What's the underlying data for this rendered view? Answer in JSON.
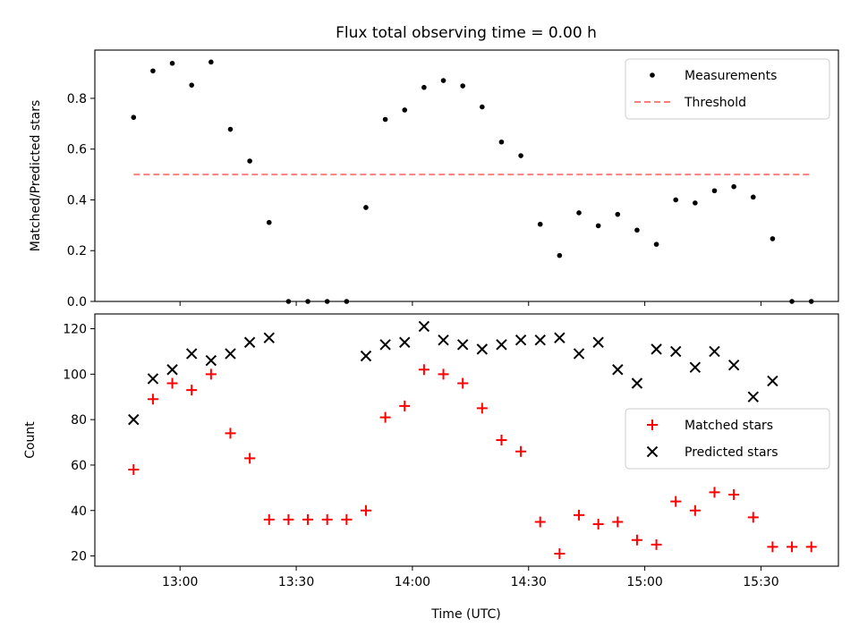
{
  "figure": {
    "title": "Flux total observing time = 0.00 h",
    "xlabel": "Time (UTC)"
  },
  "colors": {
    "measurements": "#000000",
    "threshold": "#ff7f7f",
    "matched": "#ff0000",
    "predicted": "#000000"
  },
  "chart_data": [
    {
      "type": "scatter",
      "title": "Flux total observing time = 0.00 h",
      "ylabel": "Matched/Predicted stars",
      "xlabel": "",
      "xlim": [
        "12:38",
        "15:50"
      ],
      "ylim": [
        0,
        0.99
      ],
      "yticks": [
        0.0,
        0.2,
        0.4,
        0.6,
        0.8
      ],
      "ytick_labels": [
        "0.0",
        "0.2",
        "0.4",
        "0.6",
        "0.8"
      ],
      "legend": [
        "Measurements",
        "Threshold"
      ],
      "legend_position": "top-right",
      "series": [
        {
          "name": "Measurements",
          "marker": "dot",
          "x": [
            "12:48",
            "12:53",
            "12:58",
            "13:03",
            "13:08",
            "13:13",
            "13:18",
            "13:23",
            "13:28",
            "13:33",
            "13:38",
            "13:43",
            "13:48",
            "13:53",
            "13:58",
            "14:03",
            "14:08",
            "14:13",
            "14:18",
            "14:23",
            "14:28",
            "14:33",
            "14:38",
            "14:43",
            "14:48",
            "14:53",
            "14:58",
            "15:03",
            "15:08",
            "15:13",
            "15:18",
            "15:23",
            "15:28",
            "15:33",
            "15:38",
            "15:43"
          ],
          "y": [
            0.725,
            0.908,
            0.938,
            0.852,
            0.943,
            0.678,
            0.553,
            0.311,
            0.0,
            0.0,
            0.0,
            0.0,
            0.37,
            0.717,
            0.754,
            0.843,
            0.87,
            0.849,
            0.766,
            0.628,
            0.574,
            0.304,
            0.181,
            0.349,
            0.298,
            0.343,
            0.281,
            0.225,
            0.4,
            0.388,
            0.436,
            0.452,
            0.411,
            0.247,
            0.0,
            0.0
          ]
        },
        {
          "name": "Threshold",
          "style": "dashed",
          "x": [
            "12:48",
            "15:43"
          ],
          "y": [
            0.5,
            0.5
          ]
        }
      ]
    },
    {
      "type": "scatter",
      "ylabel": "Count",
      "xlabel": "Time (UTC)",
      "xlim": [
        "12:38",
        "15:50"
      ],
      "ylim": [
        15.5,
        126.5
      ],
      "yticks": [
        20,
        40,
        60,
        80,
        100,
        120
      ],
      "ytick_labels": [
        "20",
        "40",
        "60",
        "80",
        "100",
        "120"
      ],
      "xticks": [
        "13:00",
        "13:30",
        "14:00",
        "14:30",
        "15:00",
        "15:30"
      ],
      "xtick_labels": [
        "13:00",
        "13:30",
        "14:00",
        "14:30",
        "15:00",
        "15:30"
      ],
      "legend": [
        "Matched stars",
        "Predicted stars"
      ],
      "legend_position": "center-right",
      "series": [
        {
          "name": "Matched stars",
          "marker": "plus",
          "x": [
            "12:48",
            "12:53",
            "12:58",
            "13:03",
            "13:08",
            "13:13",
            "13:18",
            "13:23",
            "13:28",
            "13:33",
            "13:38",
            "13:43",
            "13:48",
            "13:53",
            "13:58",
            "14:03",
            "14:08",
            "14:13",
            "14:18",
            "14:23",
            "14:28",
            "14:33",
            "14:38",
            "14:43",
            "14:48",
            "14:53",
            "14:58",
            "15:03",
            "15:08",
            "15:13",
            "15:18",
            "15:23",
            "15:28",
            "15:33",
            "15:38",
            "15:43"
          ],
          "y": [
            58,
            89,
            96,
            93,
            100,
            74,
            63,
            36,
            36,
            36,
            36,
            36,
            40,
            81,
            86,
            102,
            100,
            96,
            85,
            71,
            66,
            35,
            21,
            38,
            34,
            35,
            27,
            25,
            44,
            40,
            48,
            47,
            37,
            24,
            24,
            24
          ]
        },
        {
          "name": "Predicted stars",
          "marker": "x",
          "x": [
            "12:48",
            "12:53",
            "12:58",
            "13:03",
            "13:08",
            "13:13",
            "13:18",
            "13:23",
            "13:48",
            "13:53",
            "13:58",
            "14:03",
            "14:08",
            "14:13",
            "14:18",
            "14:23",
            "14:28",
            "14:33",
            "14:38",
            "14:43",
            "14:48",
            "14:53",
            "14:58",
            "15:03",
            "15:08",
            "15:13",
            "15:18",
            "15:23",
            "15:28",
            "15:33"
          ],
          "y": [
            80,
            98,
            102,
            109,
            106,
            109,
            114,
            116,
            108,
            113,
            114,
            121,
            115,
            113,
            111,
            113,
            115,
            115,
            116,
            109,
            114,
            102,
            96,
            111,
            110,
            103,
            110,
            104,
            90,
            97
          ]
        }
      ]
    }
  ]
}
